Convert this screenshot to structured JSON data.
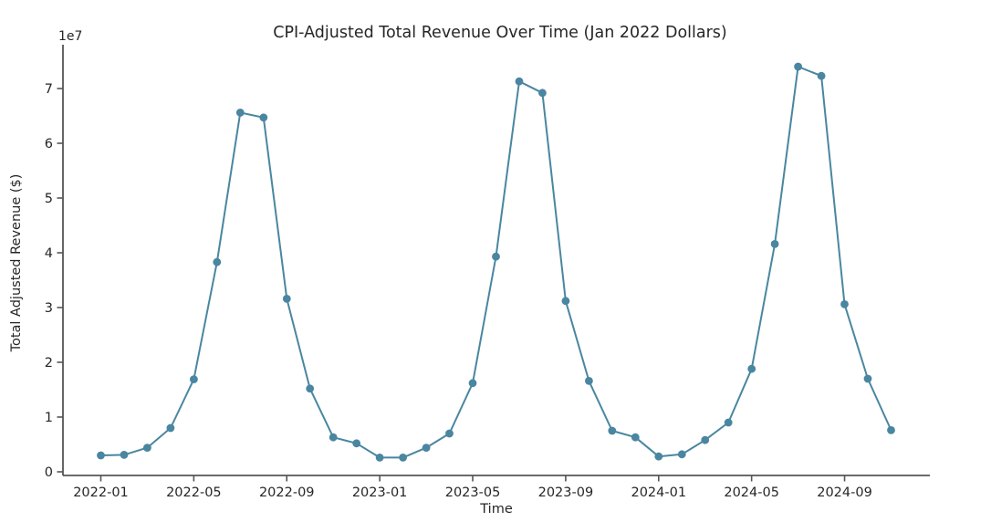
{
  "chart_data": {
    "type": "line",
    "title": "CPI-Adjusted Total Revenue Over Time (Jan 2022 Dollars)",
    "xlabel": "Time",
    "ylabel": "Total Adjusted Revenue ($)",
    "y_offset_label": "1e7",
    "x": [
      "2022-01",
      "2022-02",
      "2022-03",
      "2022-04",
      "2022-05",
      "2022-06",
      "2022-07",
      "2022-08",
      "2022-09",
      "2022-10",
      "2022-11",
      "2022-12",
      "2023-01",
      "2023-02",
      "2023-03",
      "2023-04",
      "2023-05",
      "2023-06",
      "2023-07",
      "2023-08",
      "2023-09",
      "2023-10",
      "2023-11",
      "2023-12",
      "2024-01",
      "2024-02",
      "2024-03",
      "2024-04",
      "2024-05",
      "2024-06",
      "2024-07",
      "2024-08",
      "2024-09",
      "2024-10",
      "2024-11"
    ],
    "values": [
      3000000,
      3100000,
      4400000,
      8000000,
      16900000,
      38300000,
      65600000,
      64700000,
      31600000,
      15200000,
      6300000,
      5200000,
      2600000,
      2600000,
      4400000,
      7000000,
      16200000,
      39300000,
      71300000,
      69200000,
      31200000,
      16600000,
      7500000,
      6300000,
      2800000,
      3200000,
      5800000,
      9000000,
      18800000,
      41600000,
      74000000,
      72300000,
      30600000,
      17000000,
      7600000
    ],
    "x_tick_indices": [
      0,
      4,
      8,
      12,
      16,
      20,
      24,
      28,
      32
    ],
    "x_tick_labels": [
      "2022-01",
      "2022-05",
      "2022-09",
      "2023-01",
      "2023-05",
      "2023-09",
      "2024-01",
      "2024-05",
      "2024-09"
    ],
    "y_ticks": [
      0,
      1,
      2,
      3,
      4,
      5,
      6,
      7
    ],
    "y_tick_scale": 10000000,
    "ylim": [
      -500000,
      78000000
    ],
    "grid": false,
    "legend": null,
    "colors": {
      "line": "#4a86a0",
      "marker": "#4a86a0",
      "spine": "#555555",
      "text": "#262626",
      "background": "#ffffff"
    }
  }
}
